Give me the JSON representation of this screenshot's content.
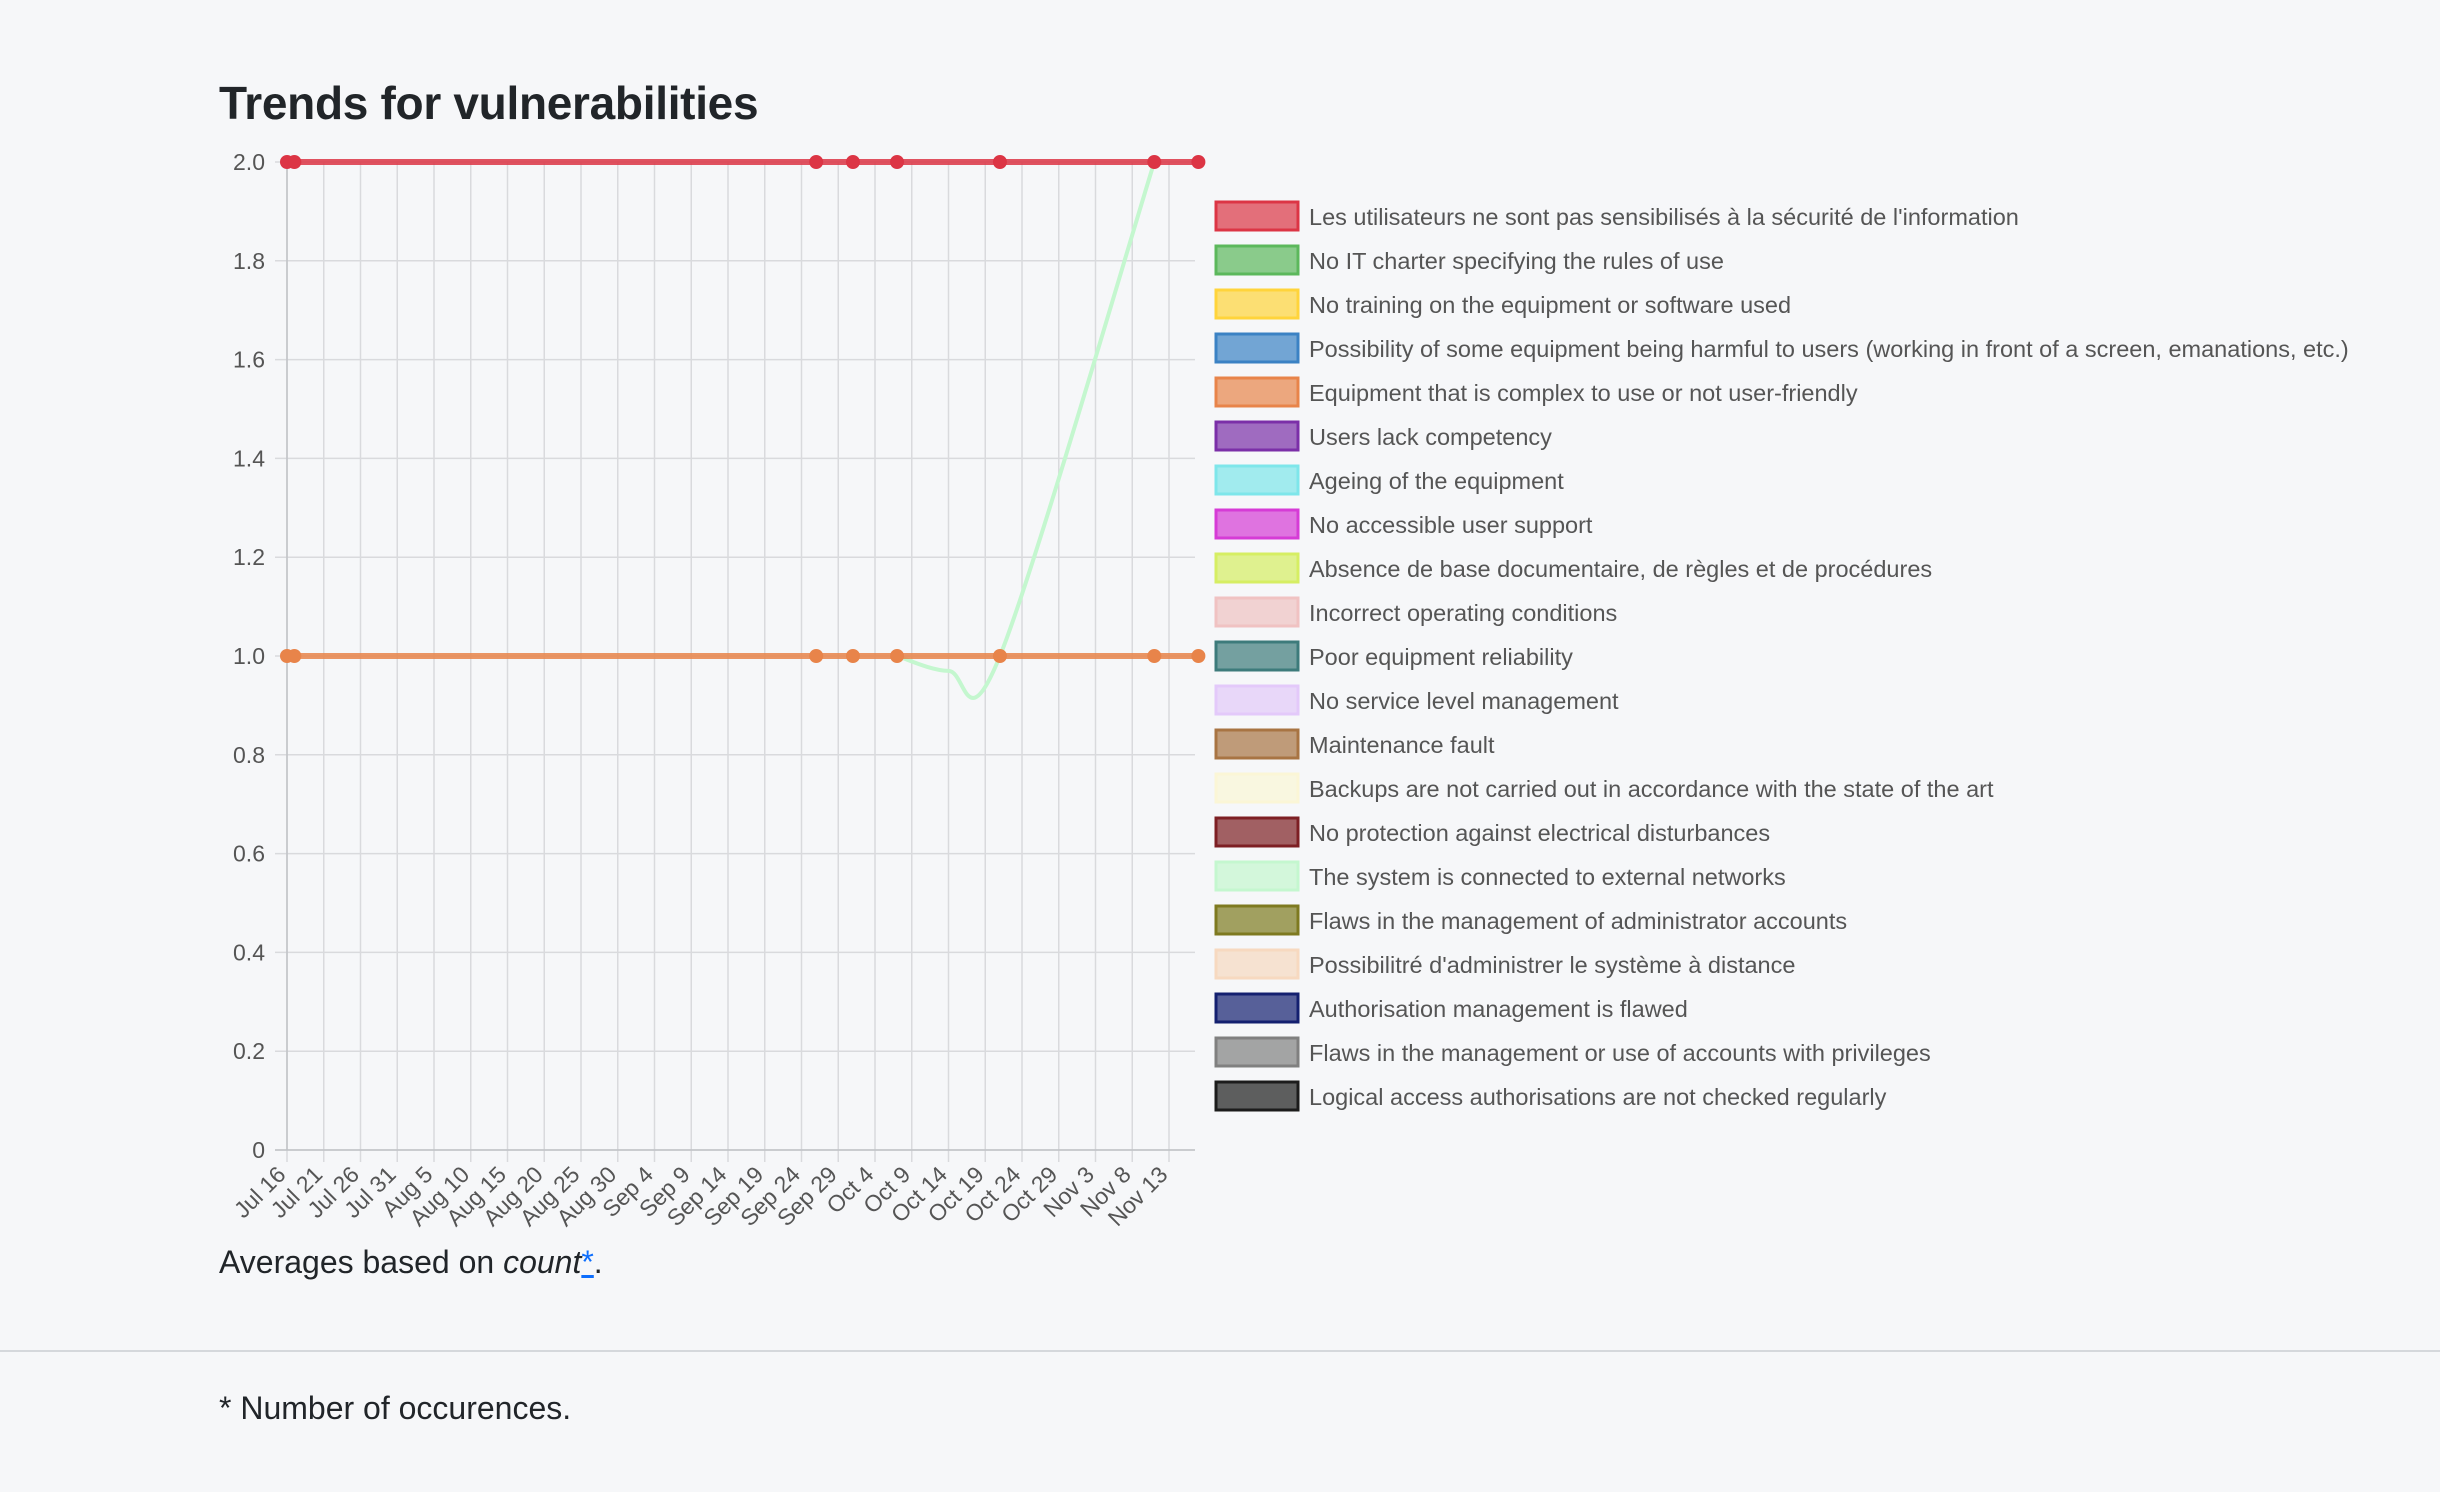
{
  "page": {
    "title": "Trends for vulnerabilities",
    "averages_prefix": "Averages based on ",
    "averages_metric": "count",
    "averages_link": "*",
    "averages_suffix": ".",
    "footnote": "* Number of occurences."
  },
  "chart_data": {
    "type": "line",
    "title": "",
    "xlabel": "",
    "ylabel": "",
    "ylim": [
      0,
      2
    ],
    "yticks": [
      "0",
      "0.2",
      "0.4",
      "0.6",
      "0.8",
      "1.0",
      "1.2",
      "1.4",
      "1.6",
      "1.8",
      "2.0"
    ],
    "x_ticks": [
      "Jul 16",
      "Jul 21",
      "Jul 26",
      "Jul 31",
      "Aug 5",
      "Aug 10",
      "Aug 15",
      "Aug 20",
      "Aug 25",
      "Aug 30",
      "Sep 4",
      "Sep 9",
      "Sep 14",
      "Sep 19",
      "Sep 24",
      "Sep 29",
      "Oct 4",
      "Oct 9",
      "Oct 14",
      "Oct 19",
      "Oct 24",
      "Oct 29",
      "Nov 3",
      "Nov 8",
      "Nov 13"
    ],
    "grid": true,
    "legend_position": "right",
    "series": [
      {
        "name": "Les utilisateurs ne sont pas sensibilisés à la sécurité de l'information",
        "color": "#dc3545",
        "points": [
          [
            "2023-07-16",
            2
          ],
          [
            "2023-07-17",
            2
          ],
          [
            "2023-09-26",
            2
          ],
          [
            "2023-10-01",
            2
          ],
          [
            "2023-10-07",
            2
          ],
          [
            "2023-10-21",
            2
          ],
          [
            "2023-11-11",
            2
          ],
          [
            "2023-11-17",
            2
          ]
        ]
      },
      {
        "name": "No IT charter specifying the rules of use",
        "color": "#5cb85c",
        "points": []
      },
      {
        "name": "No training on the equipment or software used",
        "color": "#ffd43b",
        "points": []
      },
      {
        "name": "Possibility of some equipment being harmful to users (working in front of a screen, emanations, etc.)",
        "color": "#3b82c4",
        "points": []
      },
      {
        "name": "Equipment that is complex to use or not user-friendly",
        "color": "#e8844a",
        "points": [
          [
            "2023-07-16",
            1
          ],
          [
            "2023-07-17",
            1
          ],
          [
            "2023-09-26",
            1
          ],
          [
            "2023-10-01",
            1
          ],
          [
            "2023-10-07",
            1
          ],
          [
            "2023-10-21",
            1
          ],
          [
            "2023-11-11",
            1
          ],
          [
            "2023-11-17",
            1
          ]
        ]
      },
      {
        "name": "Users lack competency",
        "color": "#7b2fa8",
        "points": []
      },
      {
        "name": "Ageing of the equipment",
        "color": "#7ee6ea",
        "points": []
      },
      {
        "name": "No accessible user support",
        "color": "#d63bd6",
        "points": []
      },
      {
        "name": "Absence de base documentaire, de règles et de procédures",
        "color": "#d6ee63",
        "points": []
      },
      {
        "name": "Incorrect operating conditions",
        "color": "#f0c2c2",
        "points": []
      },
      {
        "name": "Poor equipment reliability",
        "color": "#3d7b7b",
        "points": []
      },
      {
        "name": "No service level management",
        "color": "#e3c9fa",
        "points": []
      },
      {
        "name": "Maintenance fault",
        "color": "#a87443",
        "points": []
      },
      {
        "name": "Backups are not carried out in accordance with the state of the art",
        "color": "#fbf6d6",
        "points": []
      },
      {
        "name": "No protection against electrical disturbances",
        "color": "#7d1f24",
        "points": []
      },
      {
        "name": "The system is connected to external networks",
        "color": "#c4f7cf",
        "points": [
          [
            "2023-10-07",
            1
          ],
          [
            "2023-10-14",
            0.97
          ],
          [
            "2023-10-21",
            1
          ],
          [
            "2023-11-11",
            2
          ]
        ]
      },
      {
        "name": "Flaws in the management of administrator accounts",
        "color": "#7e7a20",
        "points": []
      },
      {
        "name": "Possibilitré d'administrer le système à distance",
        "color": "#f7d9c0",
        "points": []
      },
      {
        "name": "Authorisation management is flawed",
        "color": "#142070",
        "points": []
      },
      {
        "name": "Flaws in the management or use of accounts with privileges",
        "color": "#808080",
        "points": []
      },
      {
        "name": "Logical access authorisations are not checked regularly",
        "color": "#1c1c1c",
        "points": []
      }
    ]
  }
}
